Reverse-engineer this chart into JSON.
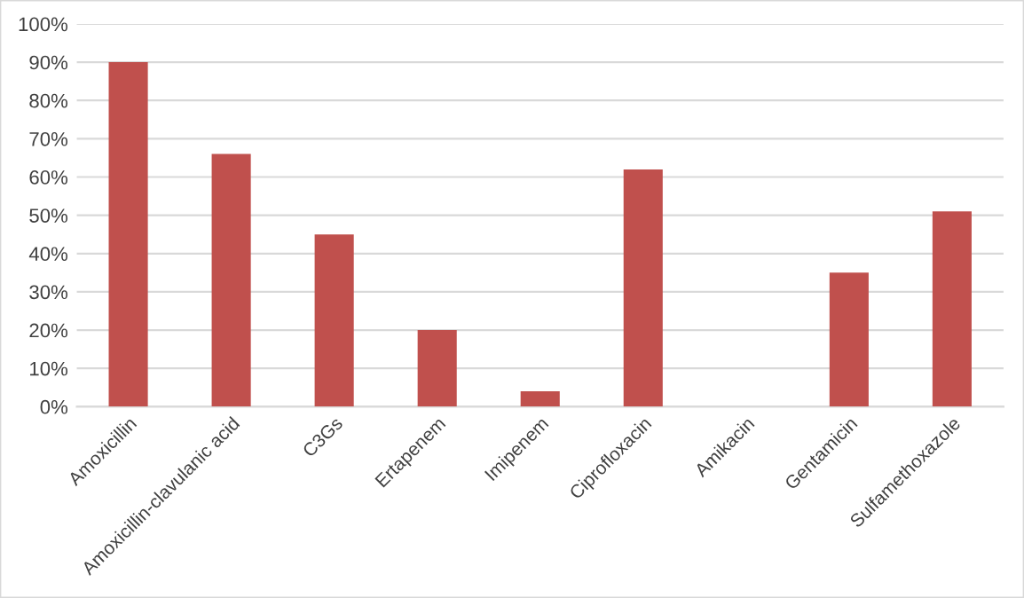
{
  "chart_data": {
    "type": "bar",
    "categories": [
      "Amoxicillin",
      "Amoxicillin-clavulanic acid",
      "C3Gs",
      "Ertapenem",
      "Imipenem",
      "Ciprofloxacin",
      "Amikacin",
      "Gentamicin",
      "Sulfamethoxazole"
    ],
    "values": [
      90,
      66,
      45,
      20,
      4,
      62,
      0,
      35,
      51
    ],
    "color": "#c0504d",
    "ylim": [
      0,
      100
    ],
    "yticks": [
      {
        "value": 0,
        "label": "0%"
      },
      {
        "value": 10,
        "label": "10%"
      },
      {
        "value": 20,
        "label": "20%"
      },
      {
        "value": 30,
        "label": "30%"
      },
      {
        "value": 40,
        "label": "40%"
      },
      {
        "value": 50,
        "label": "50%"
      },
      {
        "value": 60,
        "label": "60%"
      },
      {
        "value": 70,
        "label": "70%"
      },
      {
        "value": 80,
        "label": "80%"
      },
      {
        "value": 90,
        "label": "90%"
      },
      {
        "value": 100,
        "label": "100%"
      }
    ],
    "grid": "y",
    "legend": false
  }
}
